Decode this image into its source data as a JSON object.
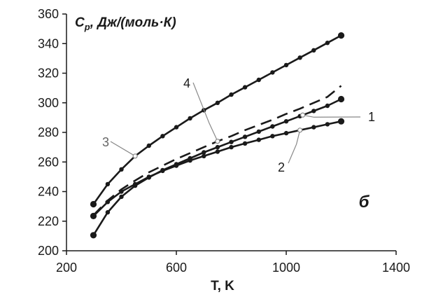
{
  "chart_data": {
    "type": "line",
    "title": "",
    "ylabel": {
      "symbol": "C",
      "subscript": "p",
      "units": ", Дж/(моль·К)"
    },
    "xlabel": "T, K",
    "panel_label": "б",
    "xlim": [
      200,
      1400
    ],
    "ylim": [
      200,
      360
    ],
    "xticks": [
      200,
      600,
      1000,
      1400
    ],
    "yticks": [
      200,
      220,
      240,
      260,
      280,
      300,
      320,
      340,
      360
    ],
    "grid": false,
    "series": [
      {
        "id": "1",
        "style": "solid-markers",
        "x": [
          298,
          350,
          400,
          450,
          500,
          550,
          600,
          650,
          700,
          750,
          800,
          850,
          900,
          950,
          1000,
          1050,
          1100,
          1150,
          1200
        ],
        "y": [
          210.5,
          226,
          236.5,
          244,
          249.5,
          254.5,
          258.5,
          262.5,
          266.5,
          270,
          273.5,
          277,
          280.5,
          284,
          287.5,
          291,
          294.5,
          298,
          302.5
        ]
      },
      {
        "id": "2",
        "style": "solid-markers",
        "x": [
          298,
          350,
          400,
          450,
          500,
          550,
          600,
          650,
          700,
          750,
          800,
          850,
          900,
          950,
          1000,
          1050,
          1100,
          1150,
          1200
        ],
        "y": [
          223.5,
          233,
          240,
          245,
          250,
          254,
          257.5,
          261,
          264,
          267,
          270,
          272.5,
          275,
          277.5,
          279.5,
          281.5,
          283.5,
          285.5,
          287.5
        ]
      },
      {
        "id": "3",
        "style": "solid-markers",
        "x": [
          298,
          350,
          400,
          450,
          500,
          550,
          600,
          650,
          700,
          750,
          800,
          850,
          900,
          950,
          1000,
          1050,
          1100,
          1150,
          1200
        ],
        "y": [
          231.5,
          245,
          255,
          264,
          271,
          277.5,
          283.5,
          289.5,
          295,
          300,
          305.5,
          310.5,
          315.5,
          320.5,
          325.5,
          330.5,
          335.5,
          340.5,
          345.5
        ]
      },
      {
        "id": "4",
        "style": "dashed",
        "x": [
          298,
          350,
          400,
          450,
          500,
          550,
          600,
          650,
          700,
          750,
          800,
          850,
          900,
          950,
          1000,
          1050,
          1100,
          1150,
          1200
        ],
        "y": [
          224,
          234,
          241.5,
          247.5,
          253,
          257.5,
          262,
          266,
          270,
          274,
          277.5,
          281.5,
          285,
          288.5,
          292.5,
          296,
          300,
          304,
          311.5
        ]
      }
    ],
    "annotations": [
      {
        "text": "1",
        "points_to_series": "1",
        "color": "#1a1a1a"
      },
      {
        "text": "2",
        "points_to_series": "2",
        "color": "#1a1a1a"
      },
      {
        "text": "3",
        "points_to_series": "3",
        "color": "#666666"
      },
      {
        "text": "4",
        "points_to_series": "4",
        "color": "#1a1a1a"
      }
    ],
    "colors": {
      "line": "#1a1a1a",
      "axis": "#1a1a1a",
      "leader": "#888888"
    }
  }
}
